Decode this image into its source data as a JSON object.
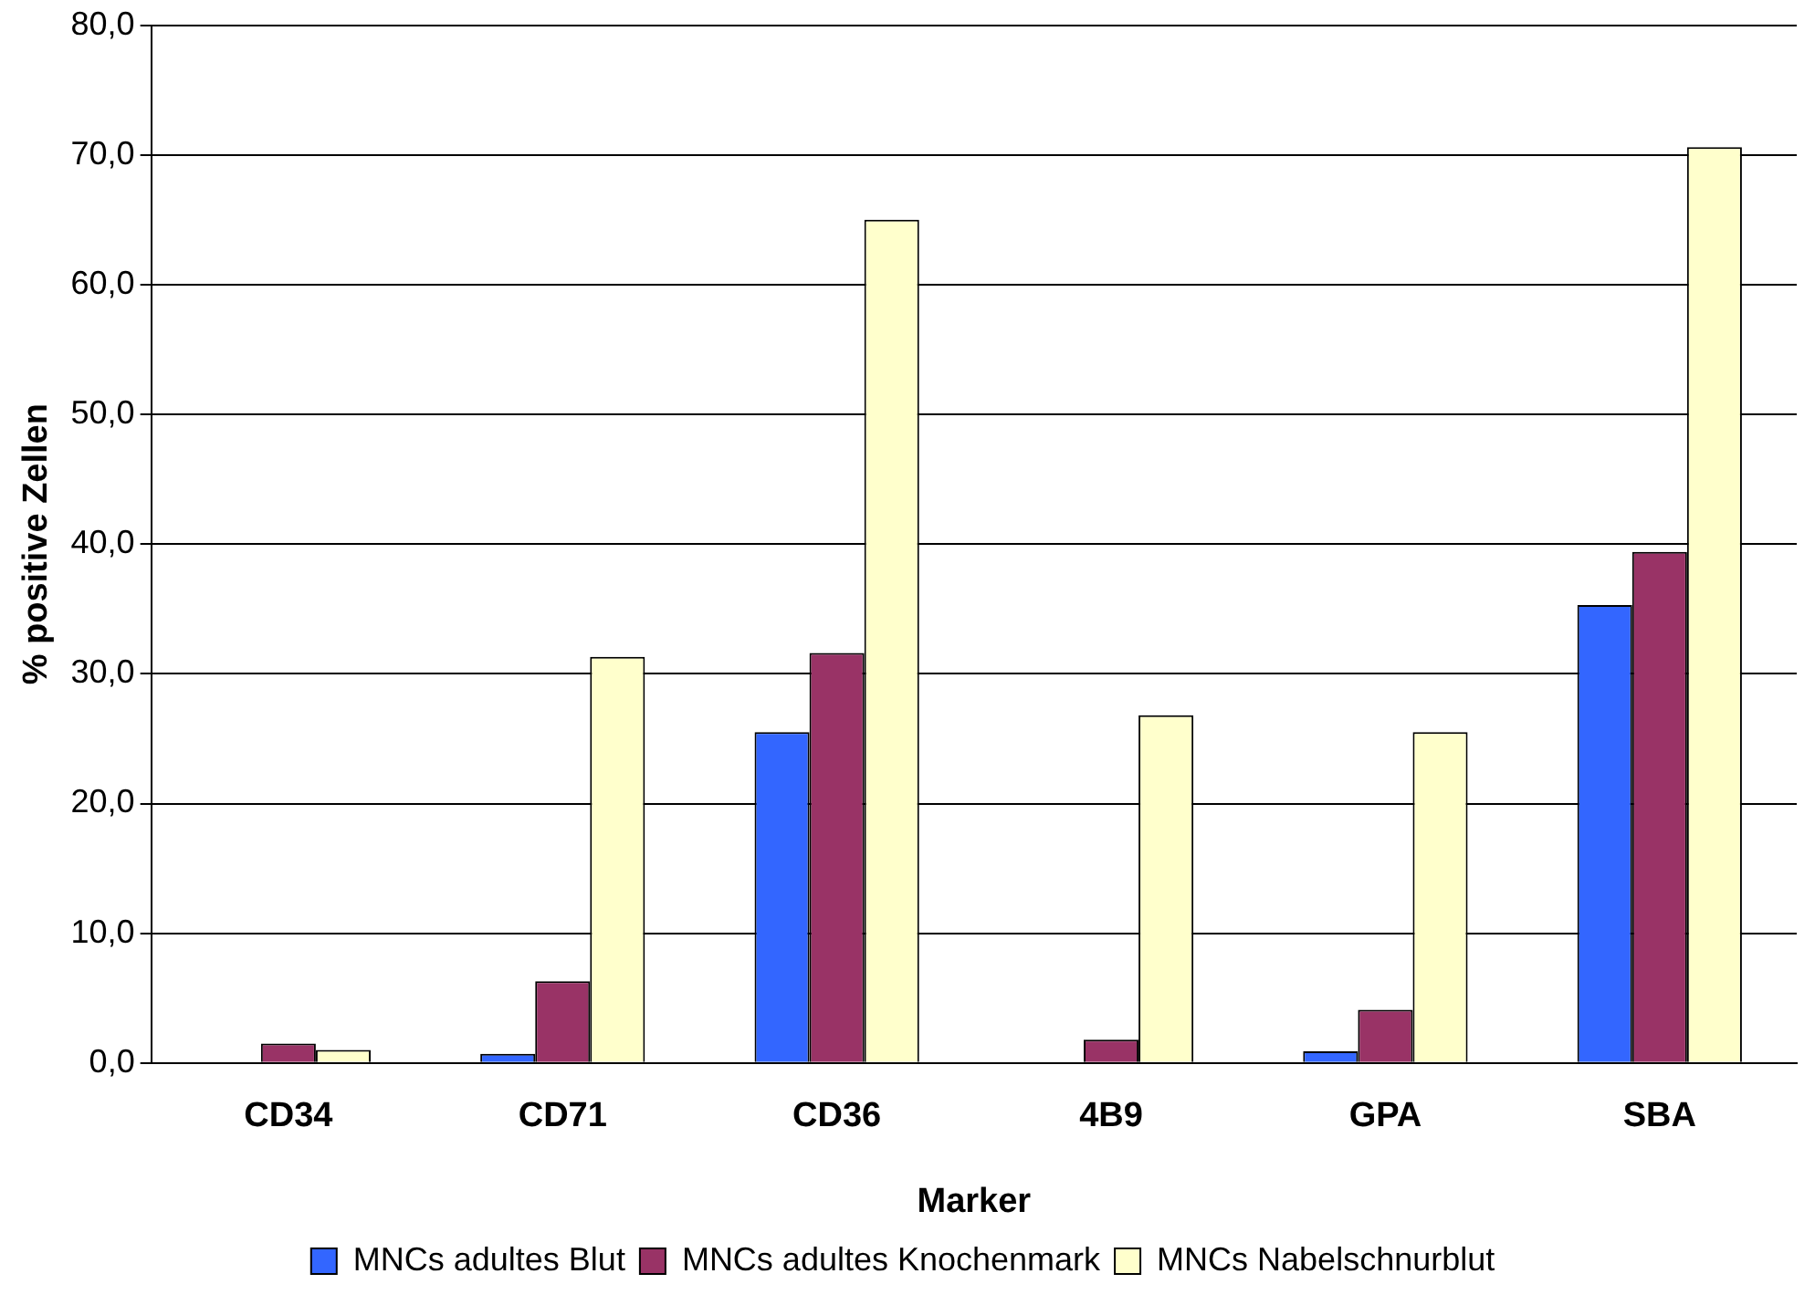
{
  "chart_data": {
    "type": "bar",
    "xlabel": "Marker",
    "ylabel": "% positive Zellen",
    "categories": [
      "CD34",
      "CD71",
      "CD36",
      "4B9",
      "GPA",
      "SBA"
    ],
    "series": [
      {
        "name": "MNCs adultes Blut",
        "color": "#3366ff",
        "values": [
          0,
          0.7,
          25.5,
          0,
          0.9,
          35.3
        ]
      },
      {
        "name": "MNCs adultes Knochenmark",
        "color": "#993366",
        "values": [
          1.5,
          6.3,
          31.6,
          1.8,
          4.1,
          39.4
        ]
      },
      {
        "name": "MNCs Nabelschnurblut",
        "color": "#ffffcc",
        "values": [
          1.0,
          31.3,
          65.0,
          26.8,
          25.5,
          70.6
        ]
      }
    ],
    "ylim": [
      0,
      80
    ],
    "yticks": [
      {
        "value": 0,
        "label": "0,0"
      },
      {
        "value": 10,
        "label": "10,0"
      },
      {
        "value": 20,
        "label": "20,0"
      },
      {
        "value": 30,
        "label": "30,0"
      },
      {
        "value": 40,
        "label": "40,0"
      },
      {
        "value": 50,
        "label": "50,0"
      },
      {
        "value": 60,
        "label": "60,0"
      },
      {
        "value": 70,
        "label": "70,0"
      },
      {
        "value": 80,
        "label": "80,0"
      }
    ],
    "grid": "y",
    "legend": "bottom"
  }
}
